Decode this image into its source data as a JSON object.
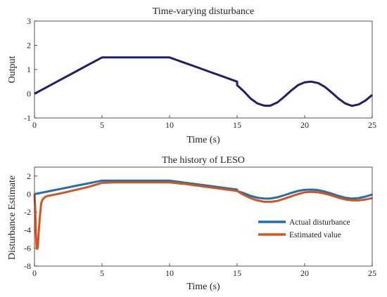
{
  "chart_data": [
    {
      "type": "line",
      "title": "Time-varying disturbance",
      "xlabel": "Time (s)",
      "ylabel": "Output",
      "xlim": [
        0,
        25
      ],
      "ylim": [
        -1,
        3
      ],
      "xticks": [
        0,
        5,
        10,
        15,
        20,
        25
      ],
      "yticks": [
        -1,
        0,
        1,
        2,
        3
      ],
      "grid": false,
      "series": [
        {
          "color": "#1f1f6b",
          "x": [
            0,
            1,
            2,
            3,
            4,
            5,
            6,
            7,
            8,
            9,
            10,
            11,
            12,
            13,
            14,
            15,
            15.0,
            15.5,
            16,
            16.5,
            17,
            17.3,
            17.5,
            18,
            18.5,
            19,
            19.5,
            20,
            20.5,
            21,
            21.5,
            22,
            22.5,
            23,
            23.5,
            24,
            24.5,
            25
          ],
          "y": [
            0,
            0.3,
            0.6,
            0.9,
            1.2,
            1.5,
            1.5,
            1.5,
            1.5,
            1.5,
            1.5,
            1.3,
            1.1,
            0.9,
            0.7,
            0.5,
            0.35,
            0.1,
            -0.2,
            -0.4,
            -0.49,
            -0.5,
            -0.48,
            -0.35,
            -0.12,
            0.13,
            0.35,
            0.47,
            0.5,
            0.44,
            0.28,
            0.05,
            -0.2,
            -0.4,
            -0.5,
            -0.44,
            -0.28,
            -0.05
          ]
        }
      ]
    },
    {
      "type": "line",
      "title": "The history of LESO",
      "xlabel": "Time (s)",
      "ylabel": "Disturbance Estimate",
      "xlim": [
        0,
        25
      ],
      "ylim": [
        -8,
        3
      ],
      "xticks": [
        0,
        5,
        10,
        15,
        20,
        25
      ],
      "yticks": [
        -8,
        -6,
        -4,
        -2,
        0,
        2
      ],
      "grid": false,
      "legend_position": "right",
      "series": [
        {
          "name": "Actual disturbance",
          "color": "#1f6fb4",
          "x": [
            0,
            1,
            2,
            3,
            4,
            5,
            6,
            7,
            8,
            9,
            10,
            11,
            12,
            13,
            14,
            15,
            15.0,
            15.5,
            16,
            16.5,
            17,
            17.3,
            17.5,
            18,
            18.5,
            19,
            19.5,
            20,
            20.5,
            21,
            21.5,
            22,
            22.5,
            23,
            23.5,
            24,
            24.5,
            25
          ],
          "y": [
            0,
            0.3,
            0.6,
            0.9,
            1.2,
            1.5,
            1.5,
            1.5,
            1.5,
            1.5,
            1.5,
            1.3,
            1.1,
            0.9,
            0.7,
            0.5,
            0.35,
            0.1,
            -0.2,
            -0.4,
            -0.49,
            -0.5,
            -0.48,
            -0.35,
            -0.12,
            0.13,
            0.35,
            0.47,
            0.5,
            0.44,
            0.28,
            0.05,
            -0.2,
            -0.4,
            -0.5,
            -0.44,
            -0.28,
            -0.05
          ]
        },
        {
          "name": "Estimated value",
          "color": "#d95319",
          "x": [
            0,
            0.05,
            0.1,
            0.15,
            0.2,
            0.25,
            0.3,
            0.4,
            0.5,
            0.6,
            0.8,
            1,
            2,
            3,
            4,
            5,
            6,
            7,
            8,
            9,
            10,
            11,
            12,
            13,
            14,
            15,
            15.5,
            16,
            16.5,
            17,
            17.5,
            18,
            18.5,
            19,
            19.5,
            20,
            20.5,
            21,
            21.5,
            22,
            22.5,
            23,
            23.5,
            24,
            24.5,
            25
          ],
          "y": [
            0,
            -1.5,
            -4.0,
            -5.8,
            -6.1,
            -5.9,
            -4.5,
            -2.5,
            -1.0,
            -0.6,
            -0.3,
            -0.2,
            0.1,
            0.45,
            0.8,
            1.25,
            1.3,
            1.3,
            1.3,
            1.3,
            1.3,
            1.15,
            0.95,
            0.75,
            0.55,
            0.35,
            -0.1,
            -0.45,
            -0.7,
            -0.85,
            -0.85,
            -0.75,
            -0.5,
            -0.25,
            0.0,
            0.2,
            0.25,
            0.2,
            0.05,
            -0.15,
            -0.4,
            -0.6,
            -0.7,
            -0.7,
            -0.6,
            -0.45
          ]
        }
      ]
    }
  ]
}
